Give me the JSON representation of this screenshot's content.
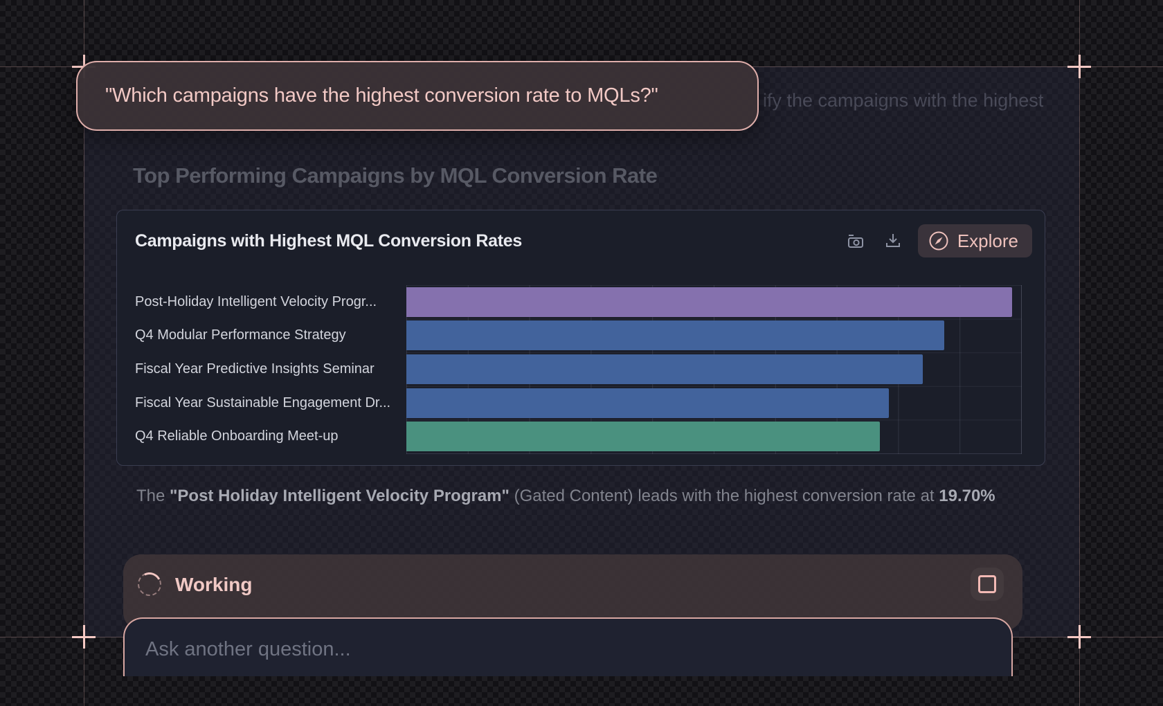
{
  "annotation": {
    "question": "\"Which campaigns have the highest conversion rate to MQLs?\"",
    "ghost": "ify the campaigns with the highest"
  },
  "page": {
    "heading": "Top Performing Campaigns by MQL Conversion Rate"
  },
  "card": {
    "title": "Campaigns with Highest MQL Conversion Rates",
    "toolbar": {
      "icons": [
        "camera-icon",
        "download-icon",
        "compass-icon"
      ],
      "explore_label": "Explore"
    }
  },
  "chart_data": {
    "type": "bar",
    "orientation": "horizontal",
    "title": "Campaigns with Highest MQL Conversion Rates",
    "categories": [
      "Post-Holiday Intelligent Velocity Progr...",
      "Q4 Modular Performance Strategy",
      "Fiscal Year Predictive Insights Seminar",
      "Fiscal Year Sustainable Engagement Dr...",
      "Q4 Reliable Onboarding Meet-up"
    ],
    "values": [
      19.7,
      17.5,
      16.8,
      15.7,
      15.4
    ],
    "unit": "%",
    "xlim": [
      0,
      20
    ],
    "gridline_interval": 2,
    "grid": true,
    "axis_tick_labels_visible": false,
    "bar_colors": [
      "#8571ae",
      "#42639c",
      "#42639c",
      "#42639c",
      "#4a917f"
    ]
  },
  "caption": {
    "prefix": "The ",
    "campaign_bold": "\"Post Holiday Intelligent Velocity Program\"",
    "middle": " (Gated Content) leads with the highest conversion rate at ",
    "value_bold": "19.70%"
  },
  "status": {
    "working_label": "Working",
    "icons": [
      "spinner-icon",
      "stop-icon"
    ]
  },
  "composer": {
    "placeholder": "Ask another question..."
  },
  "colors": {
    "accent_pink": "#f2c9c5",
    "bubble_border": "#dfaeaa",
    "card_bg": "#1b1e29",
    "bar_purple": "#8571ae",
    "bar_blue": "#42639c",
    "bar_teal": "#4a917f",
    "heading_gray": "#575964",
    "backdrop": "#121115"
  }
}
